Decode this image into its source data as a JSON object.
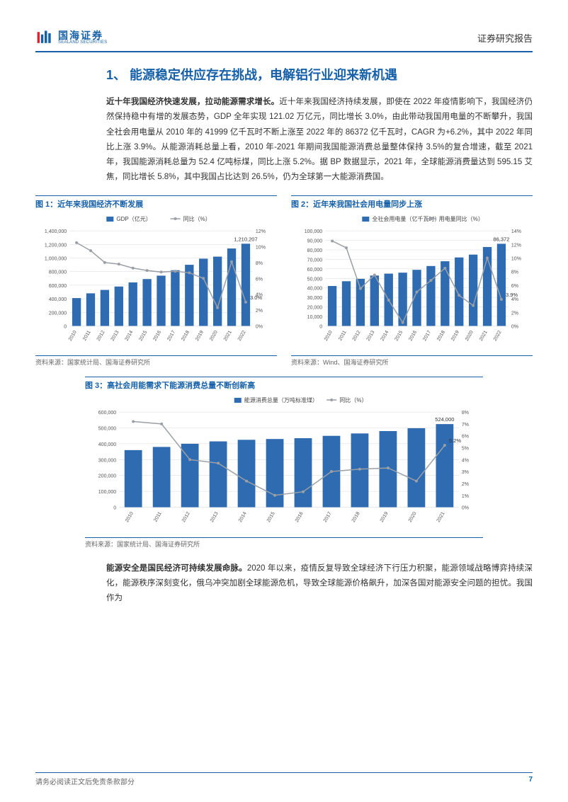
{
  "header": {
    "logo_cn": "国海证券",
    "logo_en": "SEALAND SECURITIES",
    "report_type": "证券研究报告"
  },
  "section_title": "1、 能源稳定供应存在挑战，电解铝行业迎来新机遇",
  "para1_lead": "近十年我国经济快速发展，拉动能源需求增长。",
  "para1_body": "近十年来我国经济持续发展，即使在 2022 年疫情影响下，我国经济仍然保持稳中有增的发展态势，GDP 全年实现 121.02 万亿元，同比增长 3.0%，由此带动我国用电量的不断攀升，我国全社会用电量从 2010 年的 41999 亿千瓦时不断上涨至 2022 年的 86372 亿千瓦时，CAGR 为+6.2%，其中 2022 年同比上涨 3.9%。从能源消耗总量上看，2010 年-2021 年期间我国能源消费总量整体保持 3.5%的复合增速，截至 2021 年，我国能源消耗总量为 52.4 亿吨标煤，同比上涨 5.2%。据 BP 数据显示，2021 年，全球能源消费量达到 595.15 艾焦，同比增长 5.8%，其中我国占比达到 26.5%，仍为全球第一大能源消费国。",
  "para2_lead": "能源安全是国民经济可持续发展命脉。",
  "para2_body": "2020 年以来，疫情反复导致全球经济下行压力积聚，能源领域战略博弈持续深化，能源秩序深刻变化，俄乌冲突加剧全球能源危机，导致全球能源价格飙升，加深各国对能源安全问题的担忧。我国作为",
  "chart1": {
    "title": "图 1：近年来我国经济不断发展",
    "source": "资料来源：国家统计局、国海证券研究所",
    "type": "bar_line",
    "legend_bar": "GDP（亿元）",
    "legend_line": "同比（%）",
    "categories": [
      "2010",
      "2011",
      "2012",
      "2013",
      "2014",
      "2015",
      "2016",
      "2017",
      "2018",
      "2019",
      "2020",
      "2021",
      "2022"
    ],
    "bar_values": [
      410000,
      480000,
      530000,
      580000,
      640000,
      690000,
      740000,
      820000,
      900000,
      990000,
      1020000,
      1140000,
      1210207
    ],
    "line_values": [
      10.5,
      9.5,
      8.0,
      7.8,
      7.3,
      7.0,
      6.8,
      6.9,
      6.7,
      6.0,
      2.3,
      8.1,
      3.0
    ],
    "y1_min": 0,
    "y1_max": 1400000,
    "y1_step": 200000,
    "y2_min": 0,
    "y2_max": 12,
    "y2_step": 2,
    "bar_color": "#2e6bb0",
    "line_color": "#9aa0a6",
    "grid_color": "#d9d9d9",
    "bg": "#ffffff",
    "callout_top": "1,210,207",
    "callout_end": "3.0%",
    "label_fontsize": 8,
    "tick_fontsize": 7
  },
  "chart2": {
    "title": "图 2：近年来我国社会用电量同步上涨",
    "source": "资料来源：Wind、国海证券研究所",
    "type": "bar_line",
    "legend_bar": "全社会用电量（亿千瓦时）",
    "legend_line": "用电量同比（%）",
    "categories": [
      "2010",
      "2011",
      "2012",
      "2013",
      "2014",
      "2015",
      "2016",
      "2017",
      "2018",
      "2019",
      "2020",
      "2021",
      "2022"
    ],
    "bar_values": [
      41999,
      47000,
      49500,
      53000,
      55000,
      56000,
      59000,
      63000,
      68000,
      72000,
      75000,
      83000,
      86372
    ],
    "line_values": [
      12.5,
      11.5,
      5.5,
      7.5,
      3.8,
      0.5,
      5.0,
      6.7,
      8.5,
      4.5,
      3.0,
      10.0,
      3.9
    ],
    "y1_min": 0,
    "y1_max": 100000,
    "y1_step": 10000,
    "y2_min": 0,
    "y2_max": 14,
    "y2_step": 2,
    "bar_color": "#2e6bb0",
    "line_color": "#9aa0a6",
    "grid_color": "#d9d9d9",
    "bg": "#ffffff",
    "callout_top": "86,372",
    "callout_end": "3.9%",
    "label_fontsize": 8,
    "tick_fontsize": 7
  },
  "chart3": {
    "title": "图 3：高社会用能需求下能源消费总量不断创新高",
    "source": "资料来源：国家统计局、国海证券研究所",
    "type": "bar_line",
    "legend_bar": "能源消费总量（万吨标准煤）",
    "legend_line": "同比（%）",
    "categories": [
      "2010",
      "2011",
      "2012",
      "2013",
      "2014",
      "2015",
      "2016",
      "2017",
      "2018",
      "2019",
      "2020",
      "2021"
    ],
    "bar_values": [
      360000,
      380000,
      400000,
      415000,
      425000,
      430000,
      435000,
      450000,
      465000,
      480000,
      498000,
      524000
    ],
    "line_values": [
      7.2,
      7.0,
      4.0,
      3.7,
      2.2,
      1.0,
      1.3,
      3.0,
      3.2,
      3.3,
      2.2,
      5.2
    ],
    "y1_min": 0,
    "y1_max": 600000,
    "y1_step": 100000,
    "y2_min": 0,
    "y2_max": 8,
    "y2_step": 1,
    "bar_color": "#2e6bb0",
    "line_color": "#9aa0a6",
    "grid_color": "#d9d9d9",
    "bg": "#ffffff",
    "callout_top": "524,000",
    "callout_end": "5.2%",
    "label_fontsize": 8,
    "tick_fontsize": 7
  },
  "footer": {
    "left": "请务必阅读正文后免责条款部分",
    "page": "7"
  }
}
